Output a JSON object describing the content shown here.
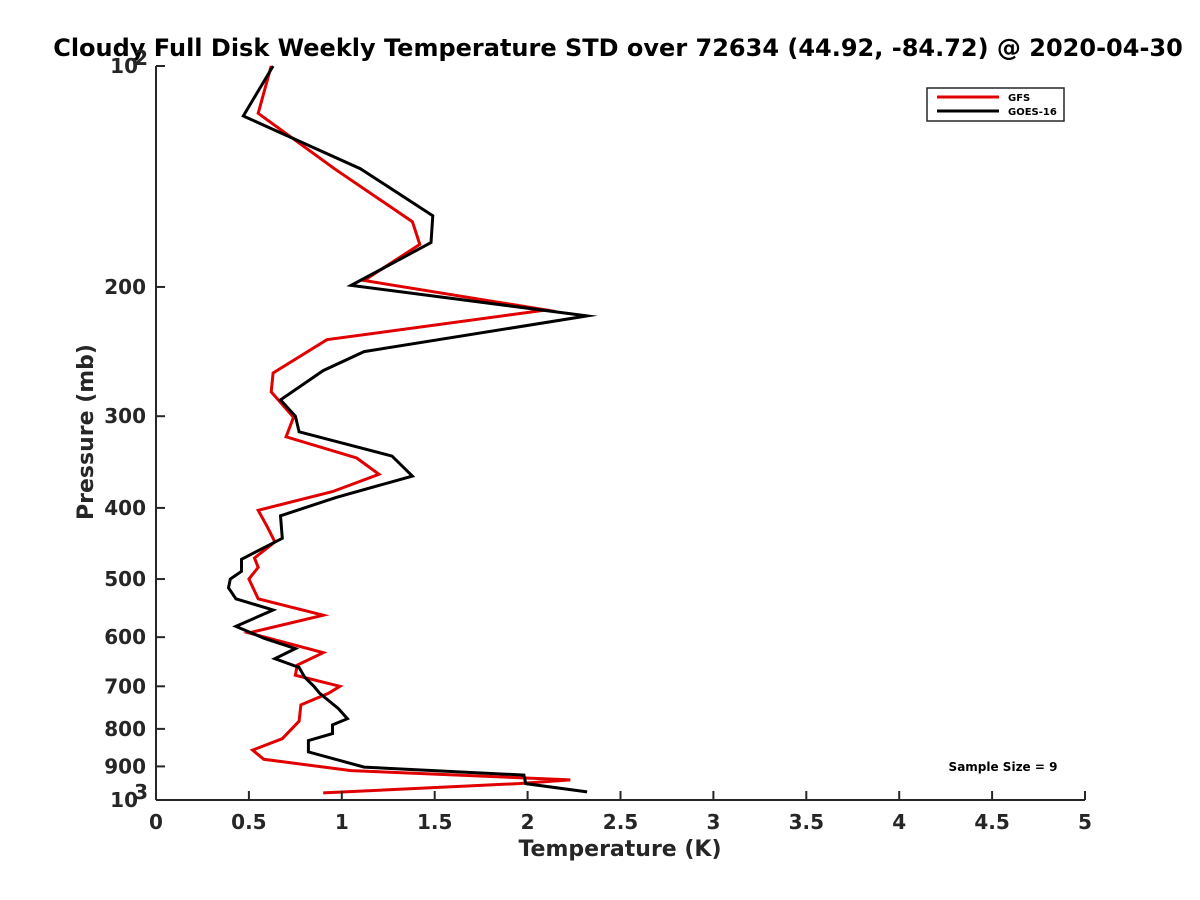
{
  "chart_data": {
    "type": "line",
    "title": "Cloudy Full Disk Weekly Temperature STD over 72634 (44.92, -84.72) @ 2020-04-30",
    "xlabel": "Temperature (K)",
    "ylabel": "Pressure (mb)",
    "xlim": [
      0,
      5
    ],
    "ylim": [
      1000,
      100
    ],
    "yscale": "log",
    "y_reversed": true,
    "x_ticks": [
      "0",
      "0.5",
      "1",
      "1.5",
      "2",
      "2.5",
      "3",
      "3.5",
      "4",
      "4.5",
      "5"
    ],
    "y_ticks": [
      {
        "value": 100,
        "label": "10",
        "sup": "2"
      },
      {
        "value": 200,
        "label": "200",
        "sup": ""
      },
      {
        "value": 300,
        "label": "300",
        "sup": ""
      },
      {
        "value": 400,
        "label": "400",
        "sup": ""
      },
      {
        "value": 500,
        "label": "500",
        "sup": ""
      },
      {
        "value": 600,
        "label": "600",
        "sup": ""
      },
      {
        "value": 700,
        "label": "700",
        "sup": ""
      },
      {
        "value": 800,
        "label": "800",
        "sup": ""
      },
      {
        "value": 900,
        "label": "900",
        "sup": ""
      },
      {
        "value": 1000,
        "label": "10",
        "sup": "3"
      }
    ],
    "grid": false,
    "legend_position": "top-right",
    "annotation": "Sample Size = 9",
    "series": [
      {
        "name": "GFS",
        "color": "#e00000",
        "points": [
          [
            0.62,
            100
          ],
          [
            0.55,
            116
          ],
          [
            0.96,
            138
          ],
          [
            1.38,
            163
          ],
          [
            1.42,
            175
          ],
          [
            1.12,
            196
          ],
          [
            2.1,
            215
          ],
          [
            0.92,
            236
          ],
          [
            0.63,
            262
          ],
          [
            0.62,
            278
          ],
          [
            0.74,
            301
          ],
          [
            0.7,
            320
          ],
          [
            1.08,
            342
          ],
          [
            1.2,
            360
          ],
          [
            0.95,
            380
          ],
          [
            0.55,
            403
          ],
          [
            0.6,
            425
          ],
          [
            0.64,
            445
          ],
          [
            0.53,
            468
          ],
          [
            0.55,
            482
          ],
          [
            0.5,
            500
          ],
          [
            0.55,
            532
          ],
          [
            0.9,
            560
          ],
          [
            0.5,
            592
          ],
          [
            0.9,
            630
          ],
          [
            0.76,
            655
          ],
          [
            0.75,
            676
          ],
          [
            0.99,
            700
          ],
          [
            0.93,
            715
          ],
          [
            0.78,
            742
          ],
          [
            0.77,
            781
          ],
          [
            0.68,
            825
          ],
          [
            0.52,
            855
          ],
          [
            0.58,
            880
          ],
          [
            1.05,
            912
          ],
          [
            2.23,
            939
          ],
          [
            1.95,
            950
          ],
          [
            0.9,
            978
          ]
        ]
      },
      {
        "name": "GOES-16",
        "color": "#000000",
        "points": [
          [
            0.63,
            100
          ],
          [
            0.47,
            117
          ],
          [
            1.1,
            138
          ],
          [
            1.49,
            160
          ],
          [
            1.48,
            174
          ],
          [
            1.05,
            199
          ],
          [
            2.32,
            219
          ],
          [
            1.12,
            245
          ],
          [
            0.9,
            260
          ],
          [
            0.67,
            285
          ],
          [
            0.75,
            300
          ],
          [
            0.77,
            315
          ],
          [
            1.27,
            340
          ],
          [
            1.38,
            362
          ],
          [
            0.97,
            387
          ],
          [
            0.67,
            410
          ],
          [
            0.68,
            440
          ],
          [
            0.46,
            470
          ],
          [
            0.46,
            488
          ],
          [
            0.4,
            500
          ],
          [
            0.39,
            514
          ],
          [
            0.43,
            532
          ],
          [
            0.63,
            551
          ],
          [
            0.43,
            580
          ],
          [
            0.58,
            602
          ],
          [
            0.75,
            622
          ],
          [
            0.64,
            642
          ],
          [
            0.77,
            660
          ],
          [
            0.8,
            680
          ],
          [
            0.85,
            700
          ],
          [
            0.88,
            715
          ],
          [
            0.98,
            750
          ],
          [
            1.03,
            775
          ],
          [
            0.95,
            790
          ],
          [
            0.95,
            812
          ],
          [
            0.82,
            830
          ],
          [
            0.82,
            860
          ],
          [
            1.12,
            902
          ],
          [
            1.98,
            925
          ],
          [
            1.99,
            950
          ],
          [
            2.32,
            975
          ]
        ]
      }
    ]
  }
}
